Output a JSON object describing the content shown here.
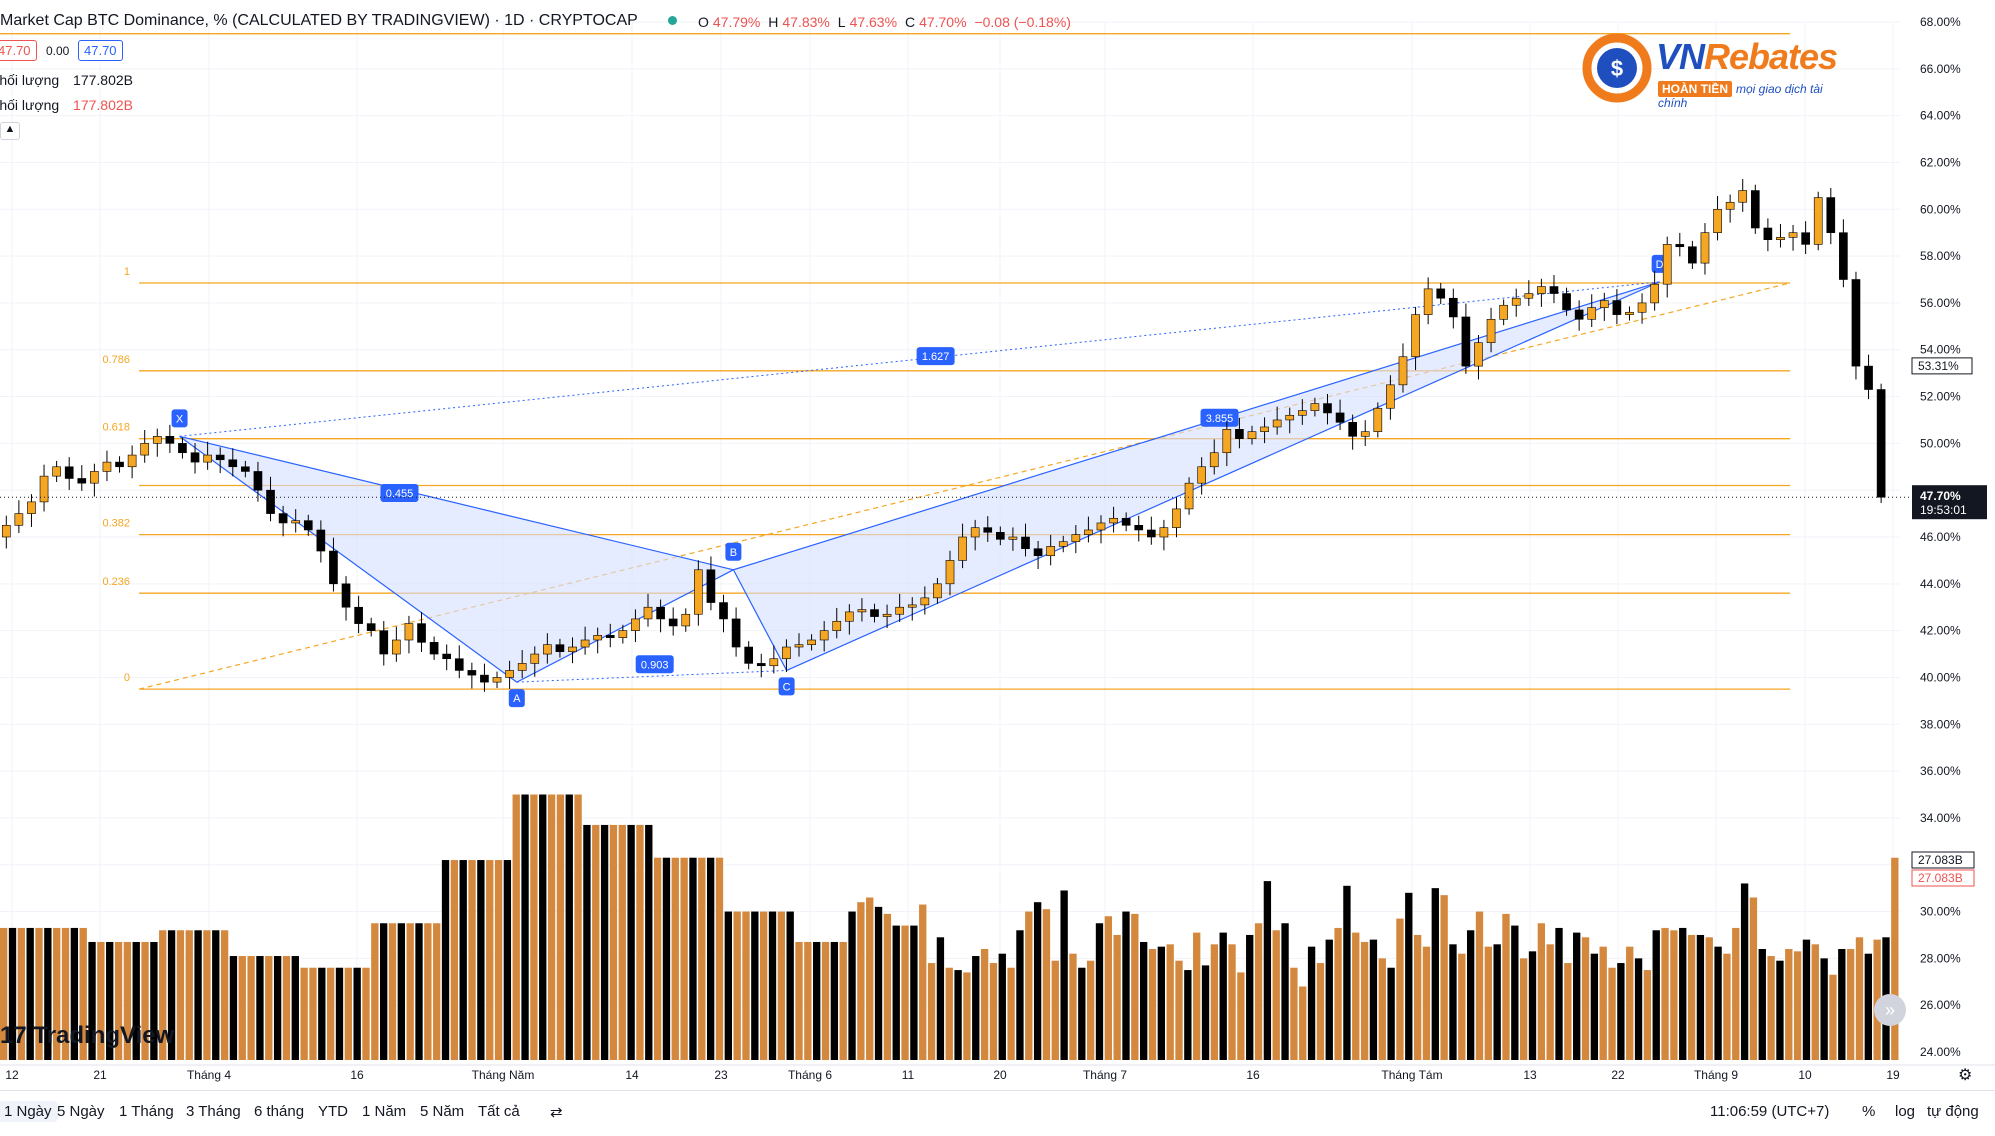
{
  "header": {
    "title": "Market Cap BTC Dominance, % (CALCULATED BY TRADINGVIEW) · 1D · CRYPTOCAP",
    "ohlc": {
      "o_label": "O",
      "o": "47.79%",
      "h_label": "H",
      "h": "47.83%",
      "l_label": "L",
      "l": "47.63%",
      "c_label": "C",
      "c": "47.70%",
      "change": "−0.08 (−0.18%)"
    },
    "price_box_1": "47.70",
    "spread": "0.00",
    "price_box_2": "47.70"
  },
  "legend": {
    "vol1_label": "Khối lượng",
    "vol1_value": "177.802B",
    "vol2_label": "Khối lượng",
    "vol2_value": "177.802B"
  },
  "logo": {
    "name_a": "VN",
    "name_b": "Rebates",
    "tag_pill": "HOÀN TIỀN",
    "tag_text": "mọi giao dịch tài chính"
  },
  "tv_logo": "TradingView",
  "toolbar": {
    "ranges": [
      "1 Ngày",
      "5 Ngày",
      "1 Tháng",
      "3 Tháng",
      "6 tháng",
      "YTD",
      "1 Năm",
      "5 Năm",
      "Tất cả"
    ],
    "time": "11:06:59 (UTC+7)",
    "pct": "%",
    "log": "log",
    "auto": "tự động"
  },
  "colors": {
    "up": "#f5a623",
    "down": "#000000",
    "vol_up": "#d4883d",
    "vol_down": "#000000",
    "fib": "#f5a623",
    "pattern": "#2962ff",
    "pattern_fill": "#d6e0ff"
  },
  "chart_data": {
    "type": "candlestick",
    "title": "Market Cap BTC Dominance, % (CALCULATED BY TRADINGVIEW) · 1D · CRYPTOCAP",
    "ylim": [
      24,
      68
    ],
    "y_ticks": [
      "68.00%",
      "66.00%",
      "64.00%",
      "62.00%",
      "60.00%",
      "58.00%",
      "56.00%",
      "54.00%",
      "52.00%",
      "50.00%",
      "48.00%",
      "46.00%",
      "44.00%",
      "42.00%",
      "40.00%",
      "38.00%",
      "36.00%",
      "34.00%",
      "32.00%",
      "30.00%",
      "28.00%",
      "26.00%",
      "24.00%"
    ],
    "x_ticks": [
      "12",
      "21",
      "Tháng 4",
      "16",
      "Tháng Năm",
      "14",
      "23",
      "Tháng 6",
      "11",
      "20",
      "Tháng 7",
      "16",
      "Tháng Tám",
      "13",
      "22",
      "Tháng 9",
      "10",
      "19"
    ],
    "last_price": "47.70%",
    "countdown": "19:53:01",
    "marker_price": "53.31%",
    "vol_labels": [
      "27.083B",
      "27.083B"
    ],
    "fib_levels": [
      {
        "label": "1",
        "value": 56.85
      },
      {
        "label": "0.786",
        "value": 53.1
      },
      {
        "label": "0.618",
        "value": 50.2
      },
      {
        "label": "",
        "value": 48.2
      },
      {
        "label": "0.382",
        "value": 46.1
      },
      {
        "label": "0.236",
        "value": 43.6
      },
      {
        "label": "0",
        "value": 39.5
      }
    ],
    "extra_level": 67.5,
    "pattern": {
      "points": [
        {
          "label": "X",
          "x": 0.0945,
          "y": 50.3
        },
        {
          "label": "A",
          "x": 0.272,
          "y": 39.8
        },
        {
          "label": "B",
          "x": 0.386,
          "y": 44.6
        },
        {
          "label": "C",
          "x": 0.414,
          "y": 40.3
        },
        {
          "label": "D",
          "x": 0.8735,
          "y": 56.9
        }
      ],
      "ratios": [
        {
          "label": "0.455"
        },
        {
          "label": "0.903"
        },
        {
          "label": "1.627"
        },
        {
          "label": "3.855"
        }
      ]
    },
    "price_path": [
      46,
      46.5,
      47,
      47.5,
      48.6,
      49,
      48.5,
      48.3,
      48.8,
      49.2,
      49,
      49.5,
      50,
      50.3,
      50,
      49.6,
      49.2,
      49.5,
      49.3,
      49,
      48.8,
      48,
      47,
      46.6,
      46.7,
      46.3,
      45.4,
      44,
      43,
      42.3,
      42,
      41,
      41.6,
      42.3,
      41.5,
      41,
      40.8,
      40.3,
      40.1,
      39.8,
      40,
      40.3,
      40.6,
      41,
      41.4,
      41.1,
      41.3,
      41.6,
      41.8,
      41.7,
      42,
      42.5,
      43,
      42.5,
      42.2,
      42.7,
      44.6,
      43.2,
      42.5,
      41.3,
      40.6,
      40.5,
      40.8,
      41.3,
      41.4,
      41.6,
      42,
      42.4,
      42.8,
      42.9,
      42.6,
      42.7,
      43,
      43.1,
      43.4,
      44,
      45,
      46,
      46.4,
      46.2,
      45.9,
      46,
      45.5,
      45.2,
      45.6,
      45.8,
      46.1,
      46.3,
      46.6,
      46.8,
      46.5,
      46.3,
      46,
      46.4,
      47.2,
      48.3,
      49,
      49.6,
      50.6,
      50.2,
      50.5,
      50.7,
      51,
      51.2,
      51.4,
      51.7,
      51.3,
      50.9,
      50.3,
      50.5,
      51.5,
      52.5,
      53.7,
      55.5,
      56.6,
      56.2,
      55.4,
      53.3,
      54.3,
      55.3,
      55.9,
      56.2,
      56.4,
      56.7,
      56.4,
      55.7,
      55.3,
      55.8,
      56.1,
      55.5,
      55.6,
      56,
      56.8,
      58.5,
      58.4,
      57.7,
      59,
      60,
      60.3,
      60.8,
      59.2,
      58.7,
      58.8,
      59,
      58.5,
      60.5,
      59,
      57,
      53.3,
      52.3,
      47.7
    ],
    "volume": [
      29.3,
      29.3,
      29.3,
      29.3,
      29.3,
      29.3,
      29.3,
      29.3,
      29.3,
      29.3,
      28.7,
      28.7,
      28.7,
      28.7,
      28.7,
      28.7,
      28.7,
      28.7,
      29.2,
      29.2,
      29.2,
      29.2,
      29.2,
      29.2,
      29.2,
      29.2,
      28.1,
      28.1,
      28.1,
      28.1,
      28.1,
      28.1,
      28.1,
      28.1,
      27.6,
      27.6,
      27.6,
      27.6,
      27.6,
      27.6,
      27.6,
      27.6,
      29.5,
      29.5,
      29.5,
      29.5,
      29.5,
      29.5,
      29.5,
      29.5,
      32.2,
      32.2,
      32.2,
      32.2,
      32.2,
      32.2,
      32.2,
      32.2,
      35.0,
      35.0,
      35.0,
      35.0,
      35.0,
      35.0,
      35.0,
      35.0,
      33.7,
      33.7,
      33.7,
      33.7,
      33.7,
      33.7,
      33.7,
      33.7,
      32.3,
      32.3,
      32.3,
      32.3,
      32.3,
      32.3,
      32.3,
      32.3,
      30.0,
      30.0,
      30.0,
      30.0,
      30.0,
      30.0,
      30.0,
      30.0,
      28.7,
      28.7,
      28.7,
      28.7,
      28.7,
      28.7,
      30.0,
      30.4,
      30.6,
      30.2,
      29.9,
      29.4,
      29.4,
      29.4,
      30.3,
      27.8,
      28.9,
      27.6,
      27.5,
      27.4,
      28.1,
      28.4,
      27.8,
      28.2,
      27.6,
      29.2,
      30.0,
      30.4,
      30.1,
      27.9,
      30.9,
      28.2,
      27.6,
      27.9,
      29.5,
      29.8,
      29.0,
      30.0,
      29.9,
      28.7,
      28.4,
      28.5,
      28.6,
      27.9,
      27.5,
      29.1,
      27.7,
      28.6,
      29.1,
      28.6,
      27.4,
      29.0,
      29.5,
      31.3,
      29.2,
      29.5,
      27.6,
      26.8,
      28.5,
      27.8,
      28.8,
      29.3,
      31.1,
      29.1,
      28.7,
      28.8,
      28.0,
      27.6,
      29.7,
      30.8,
      29.0,
      28.5,
      31.0,
      30.7,
      28.6,
      28.2,
      29.2,
      30.0,
      28.5,
      28.6,
      29.9,
      29.4,
      28.0,
      28.3,
      29.5,
      28.6,
      29.3,
      27.8,
      29.1,
      28.9,
      28.2,
      28.5,
      27.6,
      27.8,
      28.5,
      28.0,
      27.5,
      29.2,
      29.3,
      29.2,
      29.3,
      29.0,
      29.0,
      28.9,
      28.5,
      28.2,
      29.3,
      31.2,
      30.6,
      28.4,
      28.1,
      27.9,
      28.4,
      28.3,
      28.8,
      28.6,
      28.0,
      27.3,
      28.4,
      28.4,
      28.9,
      28.2,
      28.8,
      28.9,
      32.3
    ]
  }
}
